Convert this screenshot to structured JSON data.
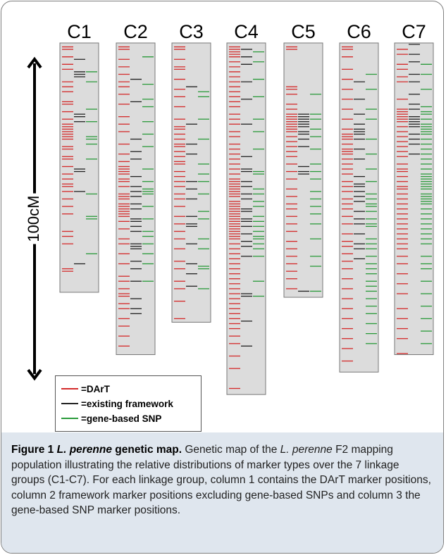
{
  "scale": {
    "label": "100cM",
    "length_cM": 100
  },
  "legend": [
    {
      "symbol": "=",
      "label": "DArT",
      "color": "#d42a2a"
    },
    {
      "symbol": "=",
      "label": "existing framework",
      "color": "#222222"
    },
    {
      "symbol": "=",
      "label": "gene-based SNP",
      "color": "#2a9a3a"
    }
  ],
  "colors": {
    "dart": "#d42a2a",
    "framework": "#222222",
    "snp": "#2a9a3a",
    "chromosome_fill": "#dcdcdc",
    "chromosome_border": "#777777"
  },
  "caption": {
    "figure_label": "Figure 1",
    "title_italic": "L. perenne",
    "title_rest": " genetic map.",
    "text_1": " Genetic map of the ",
    "text_italic": "L. perenne",
    "text_2": " F2 mapping population illustrating the relative distributions of marker types over the 7 linkage groups (C1-C7). For each linkage group, column 1 contains the DArT marker positions, column 2 framework marker positions excluding gene-based SNPs and column 3 the gene-based SNP marker positions."
  },
  "chart_data": {
    "type": "genetic_map",
    "unit": "cM",
    "linkage_groups": [
      {
        "name": "C1",
        "length": 100,
        "dart": [
          1,
          2,
          5,
          8,
          10,
          15,
          17,
          19,
          23,
          24,
          27,
          30,
          32,
          33,
          34,
          35,
          36,
          37,
          38,
          41,
          42,
          45,
          46,
          49,
          52,
          54,
          56,
          57,
          59,
          62,
          65,
          68,
          75,
          77,
          80,
          90,
          91
        ],
        "framework": [
          6,
          11,
          12,
          13,
          28,
          29,
          31,
          50,
          51,
          59,
          88
        ],
        "snp": [
          11,
          15,
          26,
          31,
          37,
          38,
          40,
          46,
          60,
          69,
          70,
          84
        ]
      },
      {
        "name": "C2",
        "length": 125,
        "dart": [
          1,
          2,
          6,
          9,
          12,
          15,
          17,
          20,
          24,
          29,
          32,
          35,
          40,
          44,
          47,
          49,
          50,
          51,
          52,
          54,
          55,
          57,
          60,
          61,
          62,
          64,
          65,
          66,
          67,
          68,
          69,
          71,
          74,
          78,
          80,
          84,
          88,
          93,
          95,
          98,
          100,
          101,
          104,
          106,
          110,
          113,
          117,
          121
        ],
        "framework": [
          14,
          23,
          38,
          43,
          46,
          53,
          57,
          59,
          61,
          64,
          66,
          70,
          71,
          73,
          75,
          80,
          81,
          82,
          87,
          90,
          95,
          102,
          106,
          108
        ],
        "snp": [
          5,
          16,
          22,
          25,
          31,
          36,
          41,
          50,
          55,
          58,
          59,
          60,
          65,
          70,
          75,
          77,
          80,
          84,
          88,
          95
        ]
      },
      {
        "name": "C3",
        "length": 112,
        "dart": [
          1,
          2,
          6,
          9,
          10,
          14,
          18,
          21,
          25,
          30,
          33,
          34,
          36,
          38,
          40,
          41,
          43,
          45,
          47,
          48,
          51,
          53,
          55,
          57,
          60,
          62,
          65,
          69,
          72,
          75,
          78,
          82,
          87,
          90,
          95,
          98,
          103,
          110
        ],
        "framework": [
          17,
          32,
          40,
          44,
          55,
          58,
          62,
          69,
          72,
          73,
          80,
          88,
          92,
          97
        ],
        "snp": [
          19,
          21,
          30,
          38,
          48,
          52,
          55,
          60,
          67,
          70,
          78,
          82,
          89,
          90,
          98
        ]
      },
      {
        "name": "C4",
        "length": 141,
        "dart": [
          1,
          2,
          3,
          4,
          5,
          7,
          9,
          11,
          13,
          15,
          17,
          19,
          21,
          23,
          25,
          28,
          30,
          32,
          35,
          37,
          40,
          42,
          44,
          46,
          48,
          50,
          52,
          54,
          55,
          56,
          57,
          58,
          59,
          60,
          61,
          63,
          64,
          65,
          66,
          67,
          68,
          69,
          70,
          71,
          72,
          73,
          74,
          75,
          76,
          77,
          78,
          80,
          82,
          84,
          86,
          88,
          90,
          92,
          94,
          96,
          98,
          100,
          102,
          104,
          106,
          108,
          110,
          112,
          114,
          117,
          120,
          125,
          130,
          138
        ],
        "framework": [
          2,
          5,
          8,
          15,
          22,
          32,
          45,
          50,
          51,
          55,
          57,
          60,
          62,
          66,
          67,
          70,
          71,
          73,
          76,
          79,
          81,
          85,
          100,
          101,
          111,
          121
        ],
        "snp": [
          3,
          7,
          14,
          21,
          30,
          35,
          42,
          51,
          52,
          58,
          60,
          63,
          65,
          69,
          71,
          73,
          75,
          77,
          78,
          80,
          82,
          85,
          95,
          101
        ]
      },
      {
        "name": "C5",
        "length": 102,
        "dart": [
          1,
          2,
          17,
          18,
          20,
          24,
          26,
          28,
          29,
          30,
          31,
          32,
          33,
          34,
          35,
          37,
          39,
          41,
          43,
          45,
          48,
          51,
          54,
          58,
          61,
          64,
          66,
          69,
          72,
          75,
          79,
          82,
          85,
          88,
          91,
          94,
          98
        ],
        "framework": [
          28,
          29,
          30,
          31,
          32,
          33,
          35,
          36,
          38,
          41,
          49,
          51,
          52,
          99
        ],
        "snp": [
          20,
          28,
          30,
          34,
          37,
          42,
          48,
          51,
          54,
          59,
          62,
          65,
          68,
          72,
          78,
          85,
          89,
          99
        ]
      },
      {
        "name": "C6",
        "length": 132,
        "dart": [
          1,
          2,
          5,
          10,
          14,
          18,
          22,
          26,
          30,
          34,
          36,
          37,
          38,
          40,
          42,
          43,
          44,
          46,
          48,
          50,
          52,
          55,
          57,
          59,
          62,
          64,
          66,
          69,
          72,
          76,
          79,
          81,
          84,
          87,
          90,
          94,
          98,
          102,
          106,
          110,
          114,
          118,
          122,
          127
        ],
        "framework": [
          15,
          22,
          28,
          32,
          34,
          35,
          36,
          38,
          42,
          46,
          53,
          56,
          57,
          59,
          61,
          63,
          67,
          70,
          72,
          76,
          80,
          82,
          86
        ],
        "snp": [
          12,
          18,
          26,
          30,
          38,
          44,
          50,
          55,
          60,
          62,
          64,
          65,
          67,
          70,
          72,
          73,
          78,
          80,
          82,
          85,
          88,
          90,
          92,
          95,
          97,
          99,
          102,
          105,
          108,
          112,
          116,
          120
        ]
      },
      {
        "name": "C7",
        "length": 125,
        "dart": [
          2,
          4,
          8,
          10,
          13,
          15,
          22,
          26,
          27,
          28,
          29,
          30,
          31,
          33,
          35,
          37,
          39,
          41,
          43,
          45,
          48,
          50,
          51,
          53,
          55,
          57,
          58,
          60,
          62,
          64,
          66,
          68,
          70,
          72,
          74,
          76,
          78,
          80,
          82,
          85,
          88,
          92,
          96,
          100,
          106,
          110,
          114,
          118,
          124
        ],
        "framework": [
          0,
          4,
          7,
          12,
          15,
          20,
          24,
          26,
          29,
          30,
          31,
          32,
          33,
          36,
          38,
          40,
          44
        ],
        "snp": [
          8,
          12,
          18,
          25,
          27,
          28,
          30,
          32,
          33,
          34,
          35,
          36,
          38,
          40,
          42,
          44,
          46,
          48,
          50,
          52,
          53,
          54,
          55,
          56,
          57,
          58,
          60,
          61,
          62,
          63,
          64,
          66,
          68,
          70,
          72,
          74,
          76,
          78,
          80,
          85,
          88,
          90,
          95,
          100,
          105,
          110,
          115,
          120
        ]
      }
    ]
  }
}
